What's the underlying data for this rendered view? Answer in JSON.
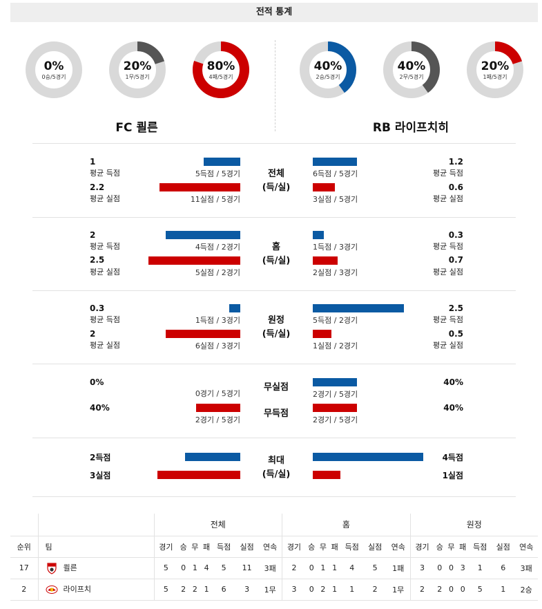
{
  "header": {
    "title": "전적 통계"
  },
  "donuts_left": [
    {
      "pct": "0%",
      "sub": "0승/5경기",
      "frac": 0,
      "color": "#0b5aa3"
    },
    {
      "pct": "20%",
      "sub": "1무/5경기",
      "frac": 0.2,
      "color": "#555555"
    },
    {
      "pct": "80%",
      "sub": "4패/5경기",
      "frac": 0.8,
      "color": "#cc0000"
    }
  ],
  "donuts_right": [
    {
      "pct": "40%",
      "sub": "2승/5경기",
      "frac": 0.4,
      "color": "#0b5aa3"
    },
    {
      "pct": "40%",
      "sub": "2무/5경기",
      "frac": 0.4,
      "color": "#555555"
    },
    {
      "pct": "20%",
      "sub": "1패/5경기",
      "frac": 0.2,
      "color": "#cc0000"
    }
  ],
  "teams": {
    "left": "FC 쾰른",
    "right": "RB 라이프치히"
  },
  "labels": {
    "avg_score": "평균 득점",
    "avg_concede": "평균 실점"
  },
  "sections": {
    "overall": {
      "mid": [
        "전체",
        "(득/실)"
      ],
      "l_score": "1",
      "l_score_cap": "5득점 / 5경기",
      "l_concede": "2.2",
      "l_concede_cap": "11실점 / 5경기",
      "r_score": "1.2",
      "r_score_cap": "6득점 / 5경기",
      "r_concede": "0.6",
      "r_concede_cap": "3실점 / 5경기"
    },
    "home": {
      "mid": [
        "홈",
        "(득/실)"
      ],
      "l_score": "2",
      "l_score_cap": "4득점 / 2경기",
      "l_concede": "2.5",
      "l_concede_cap": "5실점 / 2경기",
      "r_score": "0.3",
      "r_score_cap": "1득점 / 3경기",
      "r_concede": "0.7",
      "r_concede_cap": "2실점 / 3경기"
    },
    "away": {
      "mid": [
        "원정",
        "(득/실)"
      ],
      "l_score": "0.3",
      "l_score_cap": "1득점 / 3경기",
      "l_concede": "2",
      "l_concede_cap": "6실점 / 3경기",
      "r_score": "2.5",
      "r_score_cap": "5득점 / 2경기",
      "r_concede": "0.5",
      "r_concede_cap": "1실점 / 2경기"
    },
    "clean": {
      "mid1": "무실점",
      "mid2": "무득점",
      "l_clean": "0%",
      "l_clean_cap": "0경기 / 5경기",
      "l_blank": "40%",
      "l_blank_cap": "2경기 / 5경기",
      "r_clean": "40%",
      "r_clean_cap": "2경기 / 5경기",
      "r_blank": "40%",
      "r_blank_cap": "2경기 / 5경기"
    },
    "max": {
      "mid": [
        "최대",
        "(득/실)"
      ],
      "l_score": "2득점",
      "l_concede": "3실점",
      "r_score": "4득점",
      "r_concede": "1실점"
    }
  },
  "standings": {
    "groups": [
      "전체",
      "홈",
      "원정"
    ],
    "cols": [
      "순위",
      "팀"
    ],
    "sub": [
      "경기",
      "승",
      "무",
      "패",
      "득점",
      "실점",
      "연속"
    ],
    "rows": [
      {
        "rank": "17",
        "team": "쾰른",
        "overall": [
          "5",
          "0",
          "1",
          "4",
          "5",
          "11",
          "3패"
        ],
        "home": [
          "2",
          "0",
          "1",
          "1",
          "4",
          "5",
          "1패"
        ],
        "away": [
          "3",
          "0",
          "0",
          "3",
          "1",
          "6",
          "3패"
        ]
      },
      {
        "rank": "2",
        "team": "라이프치",
        "overall": [
          "5",
          "2",
          "2",
          "1",
          "6",
          "3",
          "1무"
        ],
        "home": [
          "3",
          "0",
          "2",
          "1",
          "1",
          "2",
          "1무"
        ],
        "away": [
          "2",
          "2",
          "0",
          "0",
          "5",
          "1",
          "2승"
        ]
      }
    ]
  }
}
